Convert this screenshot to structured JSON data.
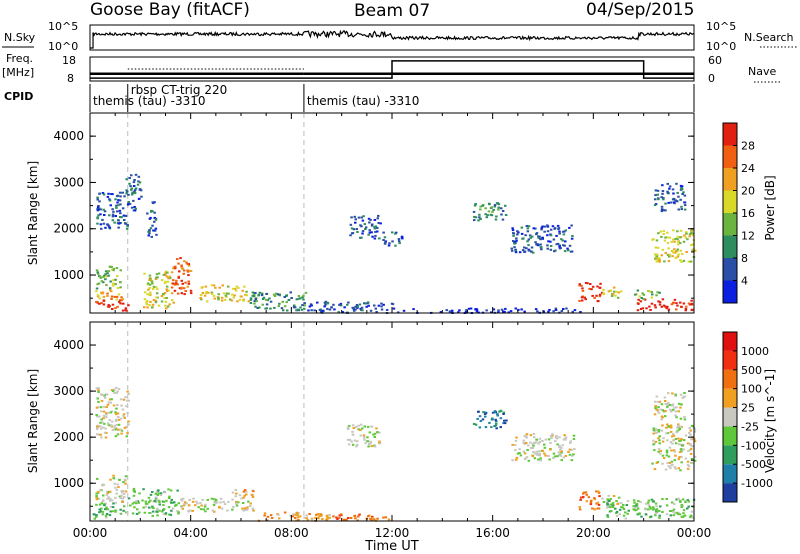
{
  "header": {
    "station": "Goose Bay (fitACF)",
    "beam": "Beam 07",
    "date": "04/Sep/2015"
  },
  "noise_panel": {
    "left_label": "N.Sky",
    "right_label": "N.Search",
    "left_ticks": [
      "10^5",
      "10^0"
    ],
    "right_ticks": [
      "10^5",
      "10^0"
    ]
  },
  "freq_panel": {
    "left_label_line1": "Freq.",
    "left_label_line2": "[MHz]",
    "right_label": "Nave",
    "left_ticks": [
      "18",
      "8"
    ],
    "right_ticks": [
      "60",
      "0"
    ],
    "nave_segments": [
      {
        "t0": 0.0,
        "t1": 12.0,
        "nave": 5
      },
      {
        "t0": 12.0,
        "t1": 22.0,
        "nave": 50
      },
      {
        "t0": 22.0,
        "t1": 24.0,
        "nave": 5
      }
    ],
    "freq_segments": [
      {
        "t0": 0.0,
        "t1": 8.5,
        "mhz": 11
      },
      {
        "t0": 8.5,
        "t1": 24.0,
        "mhz": 11
      }
    ]
  },
  "cpid": {
    "label": "CPID",
    "segments": [
      {
        "t0": 0.0,
        "t1": 1.5,
        "name": "themis (tau) -3310",
        "row": 2
      },
      {
        "t0": 1.5,
        "t1": 8.5,
        "name": "rbsp CT-trig 220",
        "row": 1
      },
      {
        "t0": 8.5,
        "t1": 24.0,
        "name": "themis (tau) -3310",
        "row": 2
      }
    ]
  },
  "chart_data": [
    {
      "type": "heatmap",
      "title": "",
      "xlabel": "",
      "ylabel": "Slant Range [km]",
      "xlim": [
        0,
        24
      ],
      "ylim": [
        180,
        4500
      ],
      "yticks": [
        "1000",
        "2000",
        "3000",
        "4000"
      ],
      "colorbar_label": "Power [dB]",
      "colorbar_ticks": [
        "28",
        "24",
        "20",
        "16",
        "12",
        "8",
        "4"
      ],
      "colorbar_colors": [
        "#0b1fe0",
        "#2a4fa6",
        "#2e8d5d",
        "#6ab43f",
        "#d9d92a",
        "#f0a020",
        "#f06010",
        "#e02010"
      ],
      "regions": [
        {
          "t0": 0.1,
          "t1": 1.5,
          "r0": 250,
          "r1": 480,
          "level": 7
        },
        {
          "t0": 0.2,
          "t1": 1.3,
          "r0": 480,
          "r1": 700,
          "level": 5
        },
        {
          "t0": 0.2,
          "t1": 1.2,
          "r0": 700,
          "r1": 1200,
          "level": 3
        },
        {
          "t0": 0.2,
          "t1": 1.5,
          "r0": 2000,
          "r1": 2800,
          "level": 1
        },
        {
          "t0": 1.4,
          "t1": 2.0,
          "r0": 2400,
          "r1": 3200,
          "level": 1
        },
        {
          "t0": 2.1,
          "t1": 3.3,
          "r0": 300,
          "r1": 1100,
          "level": 4
        },
        {
          "t0": 3.2,
          "t1": 4.0,
          "r0": 600,
          "r1": 1400,
          "level": 6
        },
        {
          "t0": 4.3,
          "t1": 6.3,
          "r0": 450,
          "r1": 800,
          "level": 4
        },
        {
          "t0": 2.2,
          "t1": 2.6,
          "r0": 1800,
          "r1": 2600,
          "level": 1
        },
        {
          "t0": 6.3,
          "t1": 8.6,
          "r0": 250,
          "r1": 650,
          "level": 2
        },
        {
          "t0": 8.6,
          "t1": 12.0,
          "r0": 200,
          "r1": 450,
          "level": 1
        },
        {
          "t0": 12.0,
          "t1": 19.5,
          "r0": 200,
          "r1": 300,
          "level": 0
        },
        {
          "t0": 10.3,
          "t1": 11.5,
          "r0": 1800,
          "r1": 2300,
          "level": 1
        },
        {
          "t0": 11.6,
          "t1": 12.4,
          "r0": 1650,
          "r1": 1950,
          "level": 1
        },
        {
          "t0": 15.2,
          "t1": 16.5,
          "r0": 2200,
          "r1": 2600,
          "level": 2
        },
        {
          "t0": 16.7,
          "t1": 19.2,
          "r0": 1500,
          "r1": 2100,
          "level": 1
        },
        {
          "t0": 19.4,
          "t1": 20.3,
          "r0": 450,
          "r1": 850,
          "level": 7
        },
        {
          "t0": 20.3,
          "t1": 21.1,
          "r0": 500,
          "r1": 750,
          "level": 4
        },
        {
          "t0": 21.7,
          "t1": 23.9,
          "r0": 250,
          "r1": 500,
          "level": 7
        },
        {
          "t0": 21.6,
          "t1": 22.6,
          "r0": 500,
          "r1": 700,
          "level": 3
        },
        {
          "t0": 22.3,
          "t1": 24.0,
          "r0": 1300,
          "r1": 2000,
          "level": 4
        },
        {
          "t0": 22.4,
          "t1": 23.6,
          "r0": 2400,
          "r1": 3000,
          "level": 1
        }
      ]
    },
    {
      "type": "heatmap",
      "title": "",
      "xlabel": "Time UT",
      "ylabel": "Slant Range [km]",
      "xlim": [
        0,
        24
      ],
      "ylim": [
        180,
        4500
      ],
      "xticks": [
        "00:00",
        "04:00",
        "08:00",
        "12:00",
        "16:00",
        "20:00",
        "00:00"
      ],
      "yticks": [
        "1000",
        "2000",
        "3000",
        "4000"
      ],
      "colorbar_label": "Velocity [m s^-1]",
      "colorbar_ticks": [
        "1000",
        "500",
        "100",
        "25",
        "-25",
        "-100",
        "-500",
        "-1000"
      ],
      "colorbar_colors": [
        "#1f3fa0",
        "#1e7fa8",
        "#2e9d5d",
        "#5fc83a",
        "#c8c8c0",
        "#f0a020",
        "#f07010",
        "#f03010",
        "#e01010"
      ],
      "regions": [
        {
          "t0": 0.1,
          "t1": 1.5,
          "r0": 250,
          "r1": 600,
          "level": 3
        },
        {
          "t0": 0.2,
          "t1": 1.4,
          "r0": 600,
          "r1": 1200,
          "level": 4
        },
        {
          "t0": 0.2,
          "t1": 1.5,
          "r0": 2000,
          "r1": 3100,
          "level": 4
        },
        {
          "t0": 1.5,
          "t1": 3.5,
          "r0": 300,
          "r1": 900,
          "level": 3
        },
        {
          "t0": 3.5,
          "t1": 6.5,
          "r0": 400,
          "r1": 700,
          "level": 4
        },
        {
          "t0": 5.5,
          "t1": 6.5,
          "r0": 700,
          "r1": 900,
          "level": 5
        },
        {
          "t0": 6.5,
          "t1": 9.5,
          "r0": 200,
          "r1": 400,
          "level": 5
        },
        {
          "t0": 9.5,
          "t1": 12.0,
          "r0": 200,
          "r1": 350,
          "level": 6
        },
        {
          "t0": 10.2,
          "t1": 11.5,
          "r0": 1800,
          "r1": 2300,
          "level": 4
        },
        {
          "t0": 15.2,
          "t1": 16.5,
          "r0": 2200,
          "r1": 2600,
          "level": 1
        },
        {
          "t0": 16.7,
          "t1": 19.2,
          "r0": 1500,
          "r1": 2100,
          "level": 4
        },
        {
          "t0": 19.4,
          "t1": 20.3,
          "r0": 450,
          "r1": 850,
          "level": 6
        },
        {
          "t0": 20.3,
          "t1": 21.1,
          "r0": 500,
          "r1": 750,
          "level": 4
        },
        {
          "t0": 20.5,
          "t1": 24.0,
          "r0": 250,
          "r1": 700,
          "level": 3
        },
        {
          "t0": 22.3,
          "t1": 24.0,
          "r0": 1300,
          "r1": 2300,
          "level": 4
        },
        {
          "t0": 22.4,
          "t1": 23.6,
          "r0": 2400,
          "r1": 3000,
          "level": 4
        }
      ]
    }
  ]
}
